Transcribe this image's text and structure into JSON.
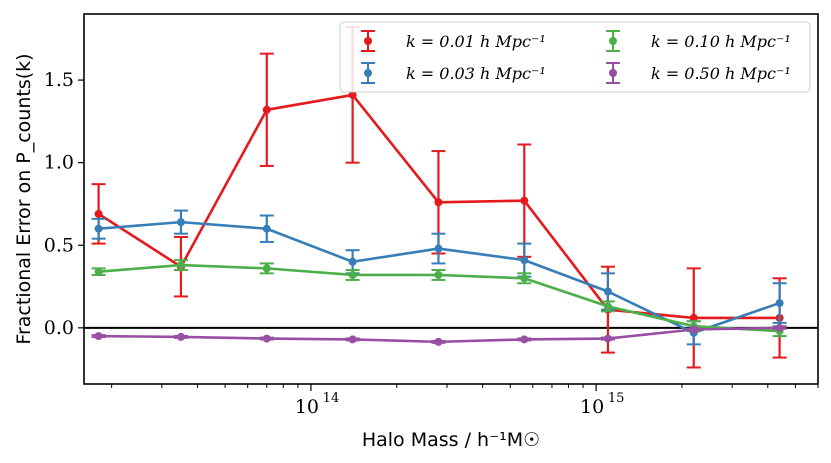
{
  "chart_data": {
    "type": "line",
    "title": "",
    "xlabel": "Halo Mass / h⁻¹M☉",
    "ylabel": "Fractional Error on P_counts(k)",
    "xscale": "log",
    "xlim": [
      16000000000000.0,
      6000000000000000.0
    ],
    "ylim": [
      -0.34,
      1.9
    ],
    "x": [
      18000000000000.0,
      35000000000000.0,
      70000000000000.0,
      140000000000000.0,
      280000000000000.0,
      560000000000000.0,
      1100000000000000.0,
      2200000000000000.0,
      4400000000000000.0
    ],
    "y_ticks": [
      0.0,
      0.5,
      1.0,
      1.5
    ],
    "y_tick_labels": [
      "0.0",
      "0.5",
      "1.0",
      "1.5"
    ],
    "x_tick_labels": [
      {
        "value": 100000000000000.0,
        "base": "10",
        "exp": "14"
      },
      {
        "value": 1000000000000000.0,
        "base": "10",
        "exp": "15"
      }
    ],
    "hline": 0,
    "legend_position": "top-right",
    "series": [
      {
        "name": "k = 0.01 h Mpc⁻¹",
        "color": "#e41a1c",
        "values": [
          0.69,
          0.37,
          1.32,
          1.41,
          0.76,
          0.77,
          0.11,
          0.06,
          0.06
        ],
        "errors": [
          0.18,
          0.18,
          0.34,
          0.41,
          0.31,
          0.34,
          0.26,
          0.3,
          0.24
        ]
      },
      {
        "name": "k = 0.03 h Mpc⁻¹",
        "color": "#377eb8",
        "values": [
          0.6,
          0.64,
          0.6,
          0.4,
          0.48,
          0.41,
          0.22,
          -0.03,
          0.15
        ],
        "errors": [
          0.06,
          0.07,
          0.08,
          0.07,
          0.09,
          0.1,
          0.11,
          0.07,
          0.12
        ]
      },
      {
        "name": "k = 0.10 h Mpc⁻¹",
        "color": "#4daf4a",
        "values": [
          0.34,
          0.38,
          0.36,
          0.32,
          0.32,
          0.3,
          0.13,
          0.01,
          -0.02
        ],
        "errors": [
          0.02,
          0.03,
          0.03,
          0.03,
          0.03,
          0.03,
          0.03,
          0.03,
          0.03
        ]
      },
      {
        "name": "k = 0.50 h Mpc⁻¹",
        "color": "#984ea3",
        "values": [
          -0.05,
          -0.055,
          -0.065,
          -0.07,
          -0.085,
          -0.07,
          -0.065,
          -0.01,
          0.0
        ],
        "errors": [
          0.006,
          0.006,
          0.006,
          0.006,
          0.006,
          0.006,
          0.006,
          0.006,
          0.006
        ]
      }
    ],
    "legend": [
      {
        "k": "0.01"
      },
      {
        "k": "0.10"
      },
      {
        "k": "0.03"
      },
      {
        "k": "0.50"
      }
    ]
  }
}
